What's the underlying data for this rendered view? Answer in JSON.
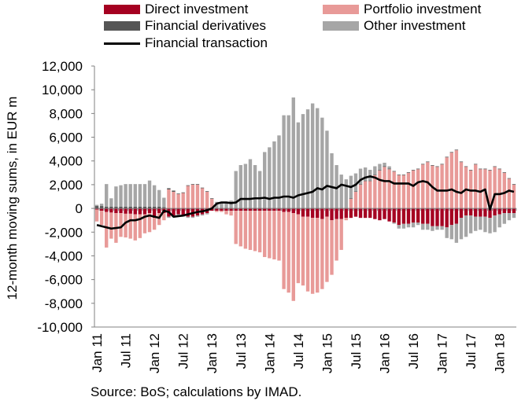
{
  "chart_data": {
    "type": "bar",
    "ylabel": "12-month moving sums, in EUR m",
    "ylim": [
      -10000,
      12000
    ],
    "yticks": [
      -10000,
      -8000,
      -6000,
      -4000,
      -2000,
      0,
      2000,
      4000,
      6000,
      8000,
      10000,
      12000
    ],
    "ytick_labels": [
      "-10,000",
      "-8,000",
      "-6,000",
      "-4,000",
      "-2,000",
      "0",
      "2,000",
      "4,000",
      "6,000",
      "8,000",
      "10,000",
      "12,000"
    ],
    "x_tick_labels": [
      "Jan 11",
      "Jul 11",
      "Jan 12",
      "Jul 12",
      "Jan 13",
      "Jul 13",
      "Jan 14",
      "Jul 14",
      "Jan 15",
      "Jul 15",
      "Jan 16",
      "Jul 16",
      "Jan 17",
      "Jul 17",
      "Jan 18"
    ],
    "x_start": "2011-01",
    "grid": false,
    "legend_position": "top",
    "series": [
      {
        "name": "Direct investment",
        "kind": "bar",
        "color": "#a50021",
        "values": [
          -100,
          -200,
          -300,
          -350,
          -400,
          -400,
          -450,
          -450,
          -500,
          -500,
          -500,
          -400,
          -800,
          -400,
          -400,
          -700,
          -600,
          -500,
          -600,
          -700,
          -700,
          -600,
          -500,
          -400,
          -200,
          -200,
          -200,
          -200,
          -200,
          -200,
          -200,
          -200,
          -200,
          -200,
          -200,
          -200,
          -200,
          -200,
          -200,
          -300,
          -300,
          -400,
          -500,
          -700,
          -700,
          -800,
          -800,
          -900,
          -700,
          -1000,
          -900,
          -900,
          -800,
          -800,
          -700,
          -800,
          -800,
          -800,
          -900,
          -1000,
          -900,
          -1100,
          -1200,
          -1400,
          -1300,
          -1300,
          -1200,
          -1200,
          -1300,
          -1300,
          -1500,
          -1500,
          -1500,
          -1600,
          -1400,
          -1300,
          -800,
          -600,
          -600,
          -700,
          -700,
          -700,
          -800,
          -600,
          -500,
          -400,
          -400,
          -400
        ]
      },
      {
        "name": "Portfolio investment",
        "kind": "bar",
        "color": "#e89a98",
        "values": [
          -1000,
          -1200,
          -3000,
          -2200,
          -2500,
          -2000,
          -2000,
          -2100,
          -2200,
          -2000,
          -1600,
          -1600,
          -1000,
          -1000,
          -600,
          1600,
          1400,
          1200,
          1300,
          1900,
          2000,
          2000,
          1700,
          1400,
          800,
          -100,
          -100,
          -300,
          -400,
          -2800,
          -3000,
          -3200,
          -3300,
          -3400,
          -3500,
          -3900,
          -4000,
          -4100,
          -4200,
          -6500,
          -6800,
          -7400,
          -5800,
          -5800,
          -6300,
          -6400,
          -6300,
          -5900,
          -5500,
          -4600,
          -3500,
          -2600,
          -200,
          800,
          1400,
          2000,
          2300,
          2300,
          2800,
          3200,
          3500,
          3300,
          3100,
          2800,
          2800,
          3000,
          3200,
          3300,
          3700,
          3900,
          3600,
          3500,
          3700,
          4300,
          4700,
          4900,
          3900,
          3500,
          3200,
          3700,
          3300,
          3300,
          3200,
          3500,
          3300,
          3000,
          2500,
          2000
        ]
      },
      {
        "name": "Financial derivatives",
        "kind": "bar",
        "color": "#555555",
        "values": [
          200,
          200,
          150,
          150,
          150,
          150,
          150,
          150,
          150,
          150,
          150,
          150,
          150,
          150,
          100,
          100,
          100,
          50,
          50,
          50,
          50,
          50,
          50,
          50,
          50,
          50,
          50,
          50,
          50,
          50,
          50,
          50,
          50,
          50,
          50,
          50,
          50,
          50,
          50,
          50,
          50,
          50,
          50,
          50,
          50,
          50,
          50,
          50,
          50,
          50,
          50,
          50,
          50,
          50,
          50,
          50,
          50,
          50,
          50,
          50,
          50,
          50,
          50,
          50,
          50,
          50,
          50,
          50,
          50,
          50,
          50,
          50,
          50,
          50,
          50,
          50,
          50,
          50,
          50,
          50,
          50,
          50,
          50,
          50,
          50,
          50,
          50,
          50
        ]
      },
      {
        "name": "Other investment",
        "kind": "bar",
        "color": "#a6a6a6",
        "values": [
          100,
          200,
          1900,
          700,
          1700,
          1800,
          1900,
          1900,
          1900,
          1900,
          1900,
          2200,
          1800,
          1400,
          800,
          -100,
          -100,
          -100,
          -100,
          -100,
          -100,
          -100,
          -100,
          -100,
          0,
          500,
          500,
          500,
          600,
          3100,
          3600,
          3700,
          4100,
          3600,
          3100,
          4700,
          5100,
          5600,
          6100,
          7800,
          7800,
          9300,
          7200,
          7900,
          8300,
          8800,
          8400,
          7600,
          6500,
          4600,
          3600,
          2800,
          2400,
          1900,
          1500,
          1300,
          1100,
          900,
          700,
          500,
          300,
          200,
          -100,
          -300,
          -400,
          -300,
          -400,
          -200,
          -500,
          -500,
          -400,
          -300,
          -300,
          -900,
          -1200,
          -1600,
          -1800,
          -1800,
          -1500,
          -1200,
          -1100,
          -1300,
          -1300,
          -1400,
          -1100,
          -900,
          -600,
          -400
        ]
      },
      {
        "name": "Financial transaction",
        "kind": "line",
        "color": "#000000",
        "values": [
          -1400,
          -1500,
          -1600,
          -1700,
          -1650,
          -1600,
          -1200,
          -1000,
          -1000,
          -900,
          -700,
          -600,
          -700,
          -800,
          -200,
          -300,
          -700,
          -650,
          -600,
          -500,
          -400,
          -300,
          -250,
          -150,
          0,
          400,
          500,
          500,
          450,
          500,
          800,
          800,
          800,
          850,
          850,
          900,
          800,
          900,
          900,
          1000,
          1000,
          900,
          1100,
          1200,
          1300,
          1400,
          1700,
          1600,
          1900,
          1800,
          1700,
          2000,
          1900,
          1800,
          2000,
          2400,
          2600,
          2700,
          2600,
          2400,
          2300,
          2300,
          2100,
          2100,
          2100,
          2100,
          1900,
          2200,
          2300,
          2200,
          1800,
          1500,
          1500,
          1500,
          1600,
          1400,
          1300,
          1600,
          1500,
          1500,
          1400,
          1600,
          -100,
          1200,
          1200,
          1300,
          1500,
          1400
        ]
      }
    ],
    "source": "Source: BoS; calculations by IMAD."
  }
}
